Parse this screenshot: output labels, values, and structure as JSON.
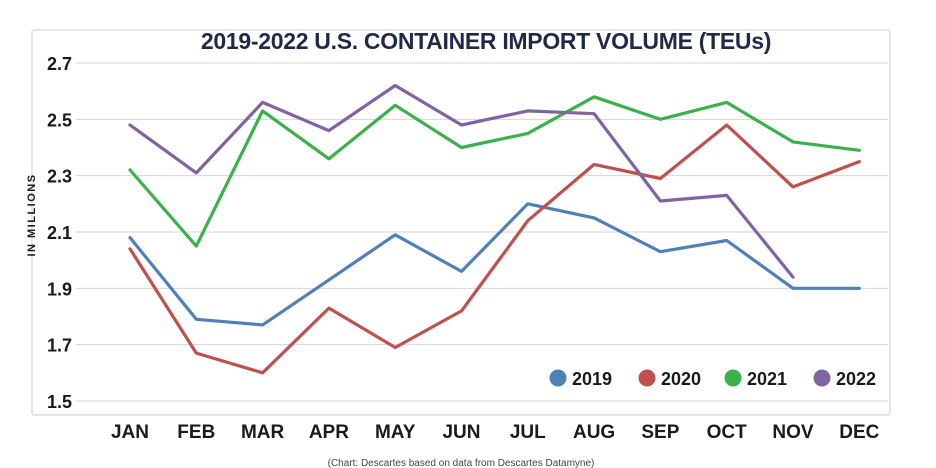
{
  "chart_data": {
    "type": "line",
    "title": "2019-2022 U.S. CONTAINER IMPORT VOLUME (TEUs)",
    "ylabel": "IN MILLIONS",
    "xlabel": "",
    "source": "(Chart: Descartes based on data from Descartes Datamyne)",
    "categories": [
      "JAN",
      "FEB",
      "MAR",
      "APR",
      "MAY",
      "JUN",
      "JUL",
      "AUG",
      "SEP",
      "OCT",
      "NOV",
      "DEC"
    ],
    "ylim": [
      1.5,
      2.7
    ],
    "yticks": [
      1.5,
      1.7,
      1.9,
      2.1,
      2.3,
      2.5,
      2.7
    ],
    "ytick_labels": [
      "1.5",
      "1.7",
      "1.9",
      "2.1",
      "2.3",
      "2.5",
      "2.7"
    ],
    "grid": true,
    "legend_position": "bottom-right",
    "series": [
      {
        "name": "2019",
        "color": "#4f81b8",
        "values": [
          2.08,
          1.79,
          1.77,
          1.93,
          2.09,
          1.96,
          2.2,
          2.15,
          2.03,
          2.07,
          1.9,
          1.9
        ]
      },
      {
        "name": "2020",
        "color": "#c0504d",
        "values": [
          2.04,
          1.67,
          1.6,
          1.83,
          1.69,
          1.82,
          2.14,
          2.34,
          2.29,
          2.48,
          2.26,
          2.35
        ]
      },
      {
        "name": "2021",
        "color": "#3cb04a",
        "values": [
          2.32,
          2.05,
          2.53,
          2.36,
          2.55,
          2.4,
          2.45,
          2.58,
          2.5,
          2.56,
          2.42,
          2.39
        ]
      },
      {
        "name": "2022",
        "color": "#8064a2",
        "values": [
          2.48,
          2.31,
          2.56,
          2.46,
          2.62,
          2.48,
          2.53,
          2.52,
          2.21,
          2.23,
          1.94,
          null
        ]
      }
    ]
  }
}
